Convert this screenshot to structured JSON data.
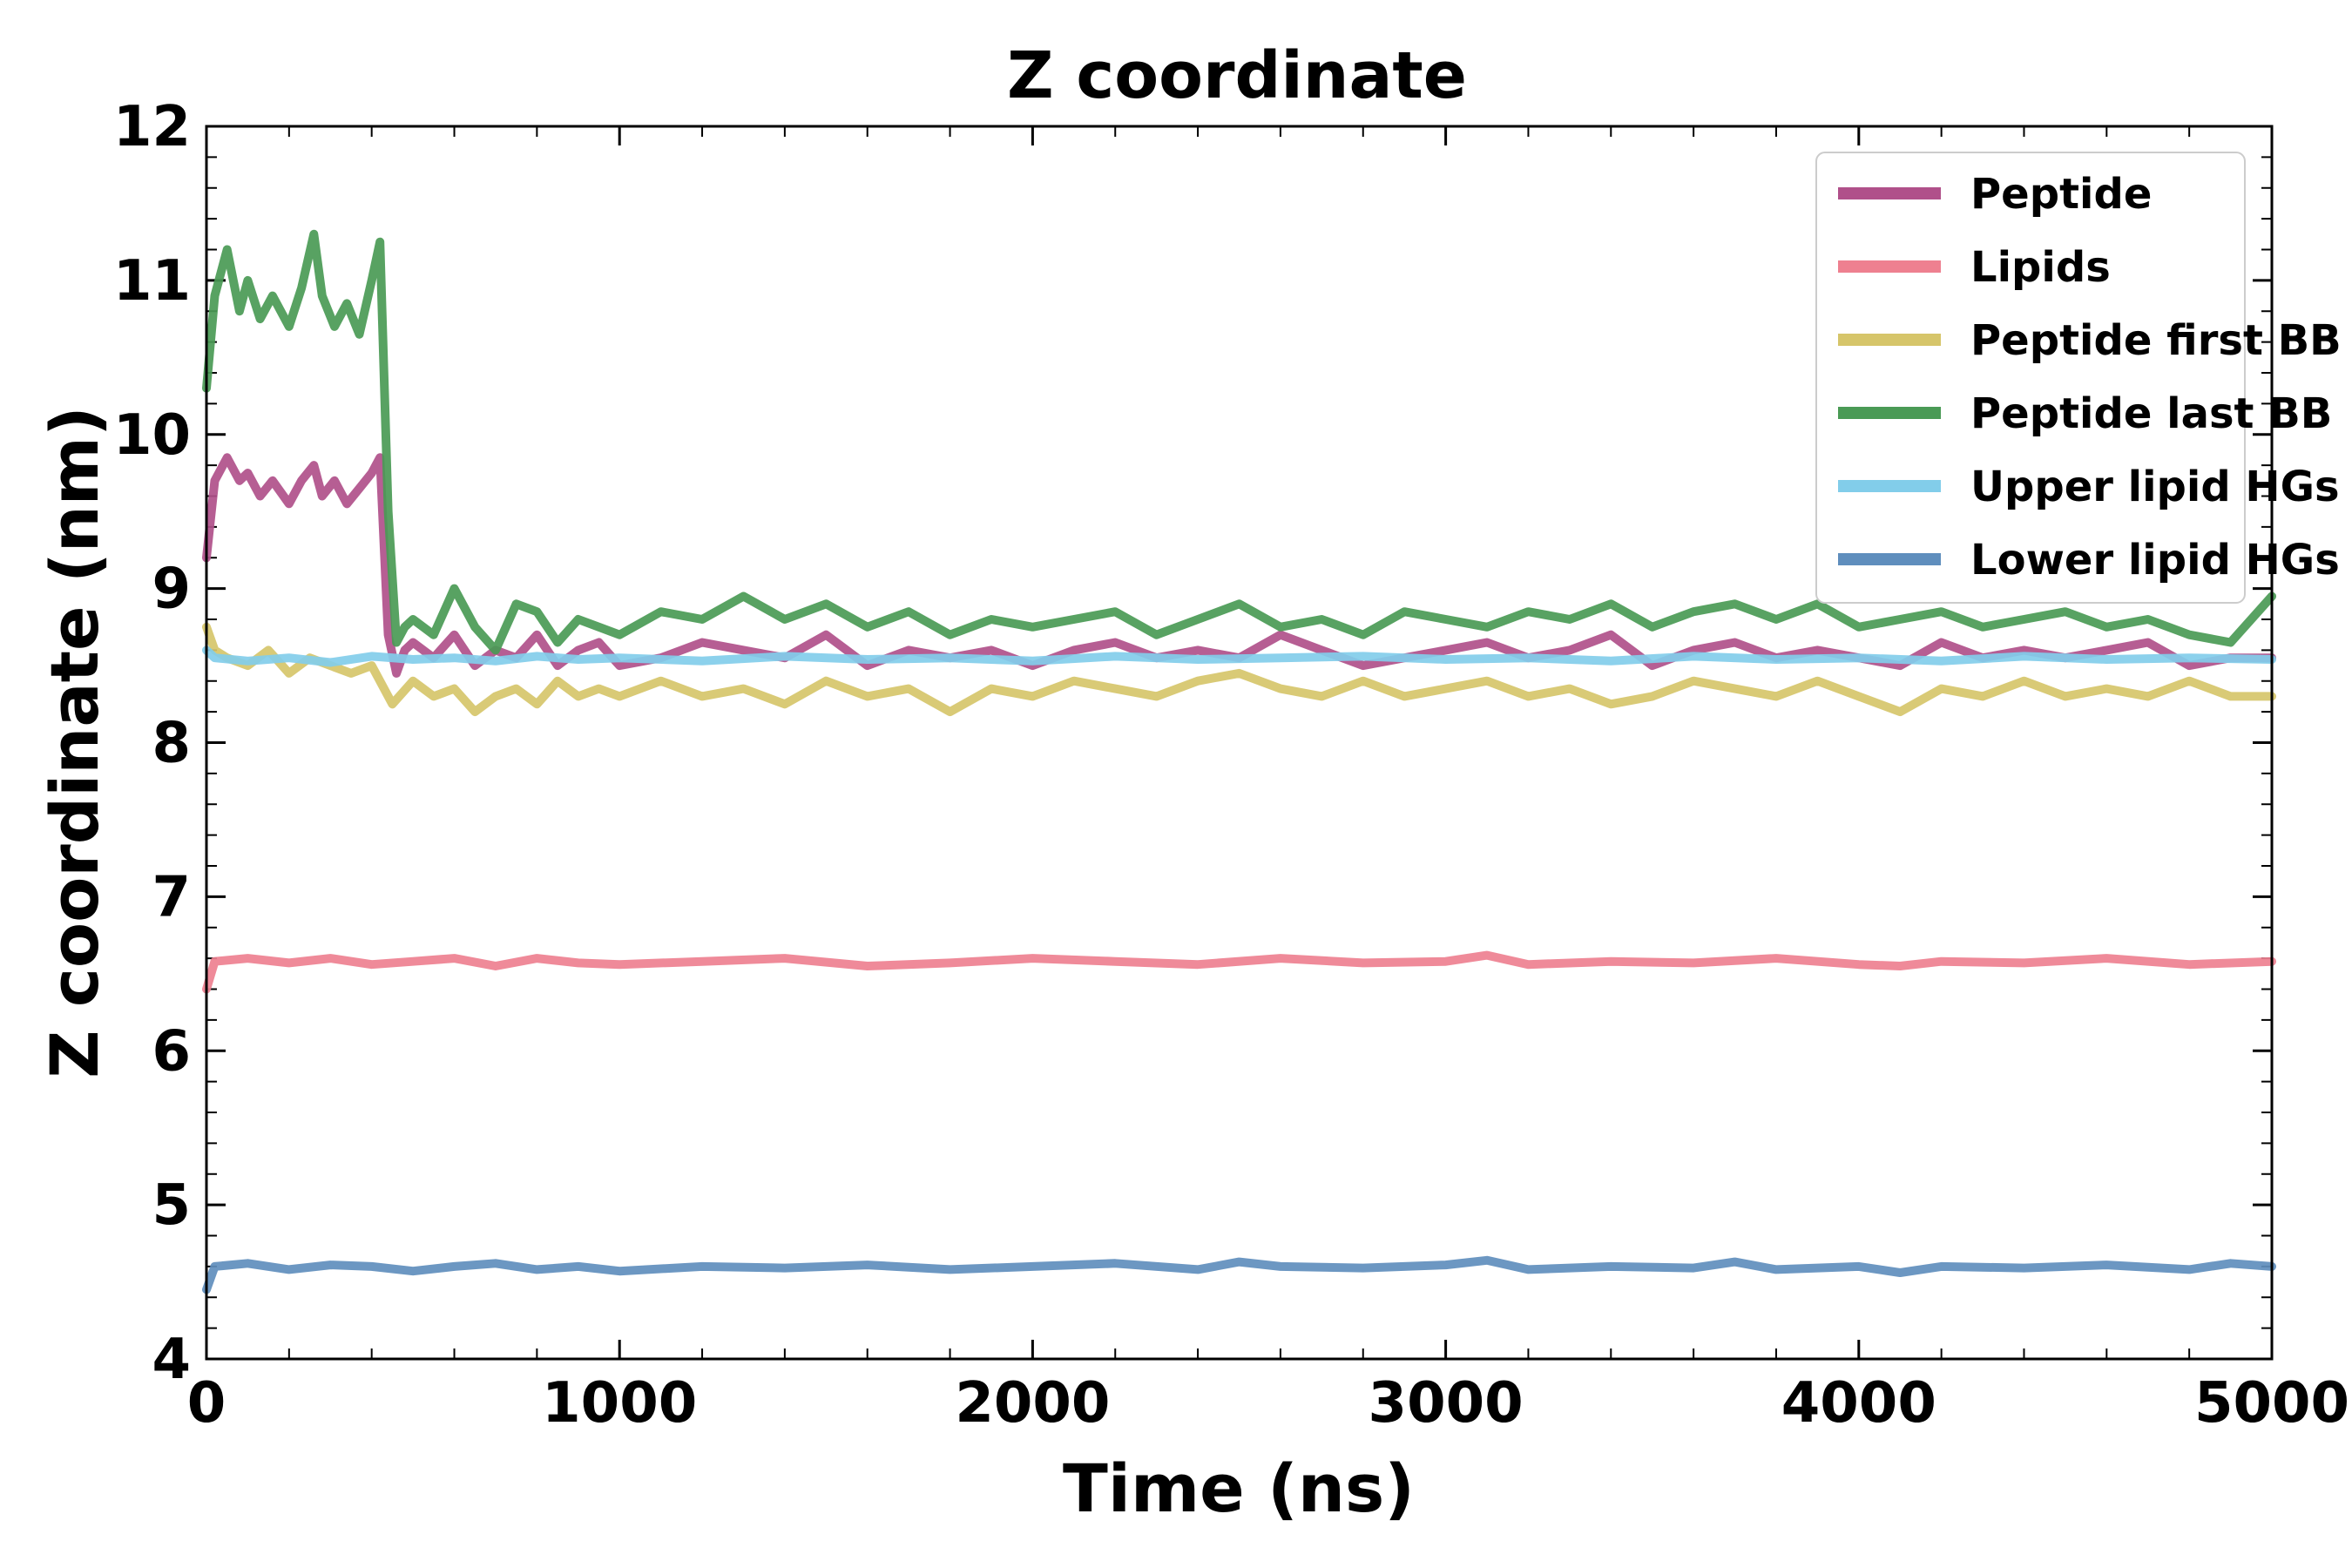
{
  "chart_data": {
    "type": "line",
    "title": "Z coordinate",
    "xlabel": "Time (ns)",
    "ylabel": "Z coordinate (nm)",
    "xlim": [
      0,
      5000
    ],
    "ylim": [
      4,
      12
    ],
    "xticks": [
      0,
      1000,
      2000,
      3000,
      4000,
      5000
    ],
    "yticks": [
      4,
      5,
      6,
      7,
      8,
      9,
      10,
      11,
      12
    ],
    "grid": false,
    "legend_position": "top-right",
    "series": [
      {
        "name": "Peptide",
        "color": "#b0508a",
        "x": [
          0,
          20,
          50,
          80,
          100,
          130,
          160,
          200,
          230,
          260,
          280,
          310,
          340,
          370,
          400,
          420,
          440,
          460,
          480,
          500,
          550,
          600,
          650,
          700,
          750,
          800,
          850,
          900,
          950,
          1000,
          1100,
          1200,
          1300,
          1400,
          1500,
          1600,
          1700,
          1800,
          1900,
          2000,
          2100,
          2200,
          2300,
          2400,
          2500,
          2600,
          2700,
          2800,
          2900,
          3000,
          3100,
          3200,
          3300,
          3400,
          3500,
          3600,
          3700,
          3800,
          3900,
          4000,
          4100,
          4200,
          4300,
          4400,
          4500,
          4600,
          4700,
          4800,
          4900,
          5000
        ],
        "values": [
          9.2,
          9.7,
          9.85,
          9.7,
          9.75,
          9.6,
          9.7,
          9.55,
          9.7,
          9.8,
          9.6,
          9.7,
          9.55,
          9.65,
          9.75,
          9.85,
          8.7,
          8.45,
          8.6,
          8.65,
          8.55,
          8.7,
          8.5,
          8.6,
          8.55,
          8.7,
          8.5,
          8.6,
          8.65,
          8.5,
          8.55,
          8.65,
          8.6,
          8.55,
          8.7,
          8.5,
          8.6,
          8.55,
          8.6,
          8.5,
          8.6,
          8.65,
          8.55,
          8.6,
          8.55,
          8.7,
          8.6,
          8.5,
          8.55,
          8.6,
          8.65,
          8.55,
          8.6,
          8.7,
          8.5,
          8.6,
          8.65,
          8.55,
          8.6,
          8.55,
          8.5,
          8.65,
          8.55,
          8.6,
          8.55,
          8.6,
          8.65,
          8.5,
          8.55,
          8.55
        ]
      },
      {
        "name": "Lipids",
        "color": "#ee8090",
        "x": [
          0,
          20,
          100,
          200,
          300,
          400,
          500,
          600,
          700,
          800,
          900,
          1000,
          1200,
          1400,
          1600,
          1800,
          2000,
          2200,
          2400,
          2600,
          2800,
          3000,
          3100,
          3200,
          3400,
          3600,
          3800,
          4000,
          4100,
          4200,
          4400,
          4600,
          4800,
          5000
        ],
        "values": [
          6.4,
          6.58,
          6.6,
          6.57,
          6.6,
          6.56,
          6.58,
          6.6,
          6.55,
          6.6,
          6.57,
          6.56,
          6.58,
          6.6,
          6.55,
          6.57,
          6.6,
          6.58,
          6.56,
          6.6,
          6.57,
          6.58,
          6.62,
          6.56,
          6.58,
          6.57,
          6.6,
          6.56,
          6.55,
          6.58,
          6.57,
          6.6,
          6.56,
          6.58
        ]
      },
      {
        "name": "Peptide first BB",
        "color": "#d6c56a",
        "x": [
          0,
          20,
          50,
          100,
          150,
          200,
          250,
          300,
          350,
          400,
          450,
          500,
          550,
          600,
          650,
          700,
          750,
          800,
          850,
          900,
          950,
          1000,
          1100,
          1200,
          1300,
          1400,
          1500,
          1600,
          1700,
          1800,
          1900,
          2000,
          2100,
          2200,
          2300,
          2400,
          2500,
          2600,
          2700,
          2800,
          2900,
          3000,
          3100,
          3200,
          3300,
          3400,
          3500,
          3600,
          3700,
          3800,
          3900,
          4000,
          4100,
          4200,
          4300,
          4400,
          4500,
          4600,
          4700,
          4800,
          4900,
          5000
        ],
        "values": [
          8.75,
          8.6,
          8.55,
          8.5,
          8.6,
          8.45,
          8.55,
          8.5,
          8.45,
          8.5,
          8.25,
          8.4,
          8.3,
          8.35,
          8.2,
          8.3,
          8.35,
          8.25,
          8.4,
          8.3,
          8.35,
          8.3,
          8.4,
          8.3,
          8.35,
          8.25,
          8.4,
          8.3,
          8.35,
          8.2,
          8.35,
          8.3,
          8.4,
          8.35,
          8.3,
          8.4,
          8.45,
          8.35,
          8.3,
          8.4,
          8.3,
          8.35,
          8.4,
          8.3,
          8.35,
          8.25,
          8.3,
          8.4,
          8.35,
          8.3,
          8.4,
          8.3,
          8.2,
          8.35,
          8.3,
          8.4,
          8.3,
          8.35,
          8.3,
          8.4,
          8.3,
          8.3
        ]
      },
      {
        "name": "Peptide last BB",
        "color": "#4a9a55",
        "x": [
          0,
          20,
          50,
          80,
          100,
          130,
          160,
          200,
          230,
          260,
          280,
          310,
          340,
          370,
          400,
          420,
          440,
          460,
          480,
          500,
          550,
          600,
          650,
          700,
          750,
          800,
          850,
          900,
          950,
          1000,
          1100,
          1200,
          1300,
          1400,
          1500,
          1600,
          1700,
          1800,
          1900,
          2000,
          2100,
          2200,
          2300,
          2400,
          2500,
          2600,
          2700,
          2800,
          2900,
          3000,
          3100,
          3200,
          3300,
          3400,
          3500,
          3600,
          3700,
          3800,
          3900,
          4000,
          4100,
          4200,
          4300,
          4400,
          4500,
          4600,
          4700,
          4800,
          4900,
          5000
        ],
        "values": [
          10.3,
          10.9,
          11.2,
          10.8,
          11.0,
          10.75,
          10.9,
          10.7,
          10.95,
          11.3,
          10.9,
          10.7,
          10.85,
          10.65,
          11.0,
          11.25,
          9.5,
          8.65,
          8.75,
          8.8,
          8.7,
          9.0,
          8.75,
          8.6,
          8.9,
          8.85,
          8.65,
          8.8,
          8.75,
          8.7,
          8.85,
          8.8,
          8.95,
          8.8,
          8.9,
          8.75,
          8.85,
          8.7,
          8.8,
          8.75,
          8.8,
          8.85,
          8.7,
          8.8,
          8.9,
          8.75,
          8.8,
          8.7,
          8.85,
          8.8,
          8.75,
          8.85,
          8.8,
          8.9,
          8.75,
          8.85,
          8.9,
          8.8,
          8.9,
          8.75,
          8.8,
          8.85,
          8.75,
          8.8,
          8.85,
          8.75,
          8.8,
          8.7,
          8.65,
          8.95
        ]
      },
      {
        "name": "Upper lipid HGs",
        "color": "#82cdea",
        "x": [
          0,
          20,
          100,
          200,
          300,
          400,
          500,
          600,
          700,
          800,
          900,
          1000,
          1200,
          1400,
          1600,
          1800,
          2000,
          2200,
          2400,
          2600,
          2800,
          3000,
          3200,
          3400,
          3600,
          3800,
          4000,
          4200,
          4400,
          4600,
          4800,
          5000
        ],
        "values": [
          8.6,
          8.55,
          8.53,
          8.55,
          8.52,
          8.56,
          8.54,
          8.55,
          8.53,
          8.56,
          8.54,
          8.55,
          8.53,
          8.56,
          8.54,
          8.55,
          8.53,
          8.56,
          8.54,
          8.55,
          8.56,
          8.54,
          8.55,
          8.53,
          8.56,
          8.54,
          8.55,
          8.53,
          8.56,
          8.54,
          8.55,
          8.54
        ]
      },
      {
        "name": "Lower lipid HGs",
        "color": "#5f8ebd",
        "x": [
          0,
          20,
          100,
          200,
          300,
          400,
          500,
          600,
          700,
          800,
          900,
          1000,
          1200,
          1400,
          1600,
          1800,
          2000,
          2200,
          2400,
          2500,
          2600,
          2800,
          3000,
          3100,
          3200,
          3400,
          3600,
          3700,
          3800,
          4000,
          4100,
          4200,
          4400,
          4600,
          4800,
          4900,
          5000
        ],
        "values": [
          4.45,
          4.6,
          4.62,
          4.58,
          4.61,
          4.6,
          4.57,
          4.6,
          4.62,
          4.58,
          4.6,
          4.57,
          4.6,
          4.59,
          4.61,
          4.58,
          4.6,
          4.62,
          4.58,
          4.63,
          4.6,
          4.59,
          4.61,
          4.64,
          4.58,
          4.6,
          4.59,
          4.63,
          4.58,
          4.6,
          4.56,
          4.6,
          4.59,
          4.61,
          4.58,
          4.62,
          4.6
        ]
      }
    ]
  }
}
